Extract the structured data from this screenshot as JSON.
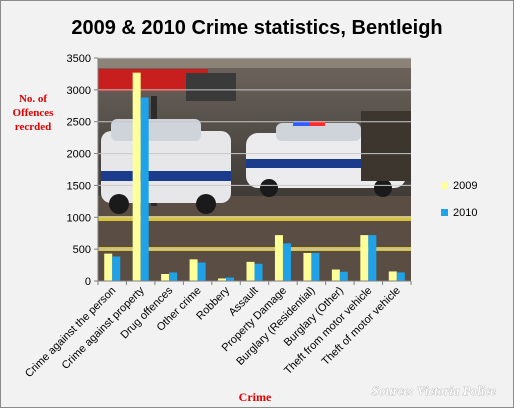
{
  "chart_data": {
    "type": "bar",
    "title": "2009 & 2010 Crime statistics, Bentleigh",
    "xlabel": "Crime",
    "ylabel": "No. of Offences recrded",
    "source": "Source: Victoria Police",
    "ylim": [
      0,
      3500
    ],
    "ytick_step": 500,
    "grid": true,
    "legend_position": "right",
    "categories": [
      "Crime against the person",
      "Crime against property",
      "Drug offences",
      "Other crime",
      "Robbery",
      "Assault",
      "Property Damage",
      "Burglary (Residential)",
      "Burglary (Other)",
      "Theft from motor vehicle",
      "Theft of motor vehicle"
    ],
    "series": [
      {
        "name": "2009",
        "color": "#ffff99",
        "values": [
          430,
          3270,
          110,
          340,
          40,
          300,
          720,
          440,
          180,
          720,
          150
        ]
      },
      {
        "name": "2010",
        "color": "#1fa2e8",
        "values": [
          385,
          2880,
          135,
          290,
          55,
          270,
          590,
          440,
          145,
          720,
          135
        ]
      }
    ]
  }
}
